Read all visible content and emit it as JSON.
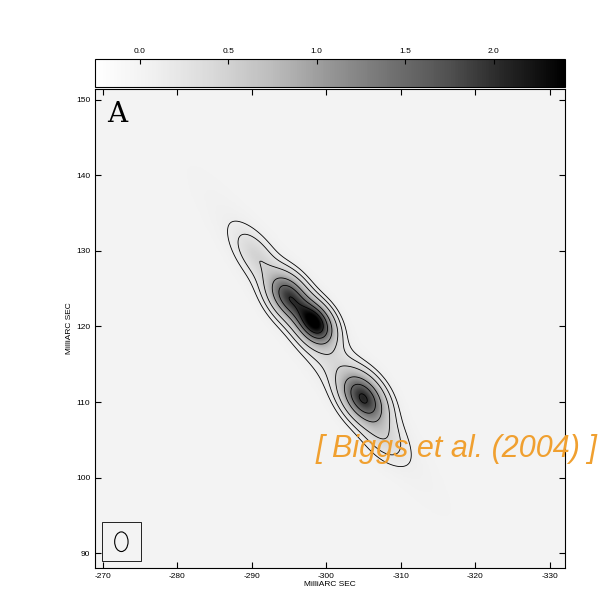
{
  "chart_data": {
    "type": "contour",
    "title": "A",
    "annotation": "[ Biggs et al. (2004) ]",
    "x_label": "MilliARC SEC",
    "y_label": "MilliARC SEC",
    "xlim": [
      -269,
      -332
    ],
    "ylim": [
      88,
      151.5
    ],
    "xticks": [
      -270,
      -280,
      -290,
      -300,
      -310,
      -320,
      -330
    ],
    "yticks": [
      90,
      100,
      110,
      120,
      130,
      140,
      150
    ],
    "components": [
      {
        "x": -299,
        "y": 118,
        "peak": 0.35,
        "sigma_major": 12,
        "sigma_minor": 1.8,
        "pa": 53
      },
      {
        "x": -295,
        "y": 124,
        "peak": 1.6,
        "sigma_major": 2.2,
        "sigma_minor": 1.5,
        "pa": 53
      },
      {
        "x": -298.5,
        "y": 120.5,
        "peak": 2.2,
        "sigma_major": 2.0,
        "sigma_minor": 1.4,
        "pa": 53
      },
      {
        "x": -305,
        "y": 110.5,
        "peak": 1.8,
        "sigma_major": 2.4,
        "sigma_minor": 1.6,
        "pa": 53
      },
      {
        "x": -307.5,
        "y": 105.5,
        "peak": 0.3,
        "sigma_major": 2.5,
        "sigma_minor": 1.5,
        "pa": 53
      },
      {
        "x": -290.5,
        "y": 129.5,
        "peak": 0.3,
        "sigma_major": 2.5,
        "sigma_minor": 1.3,
        "pa": 53
      }
    ],
    "contour_levels": [
      0.12,
      0.25,
      0.5,
      1.0,
      1.5,
      2.0
    ],
    "colorbar_range": [
      -0.25,
      2.4
    ],
    "colorbar_ticks": [
      {
        "value": 0,
        "label": "0.0"
      },
      {
        "value": 0.5,
        "label": "0.5"
      },
      {
        "value": 1,
        "label": "1.0"
      },
      {
        "value": 1.5,
        "label": "1.5"
      },
      {
        "value": 2,
        "label": "2.0"
      }
    ],
    "beam": {
      "x": -272.5,
      "y": 91.5,
      "major": 2.6,
      "minor": 1.8
    }
  }
}
